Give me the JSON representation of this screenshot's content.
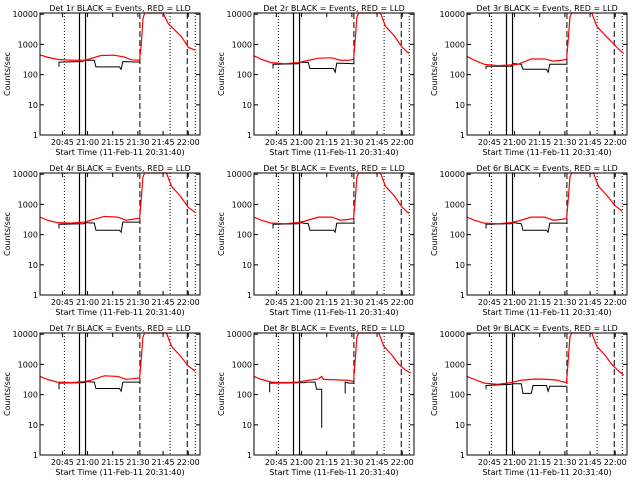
{
  "chart_data": {
    "type": "line",
    "layout": "3x3 grid",
    "ylabel": "Counts/sec",
    "xlabel": "Start Time (11-Feb-11 20:31:40)",
    "yscale": "log",
    "ylim": [
      1,
      11000
    ],
    "xlim_minutes_after_20h": [
      31.67,
      127
    ],
    "x_ticks": [
      {
        "v": 45,
        "label": "20:45"
      },
      {
        "v": 60,
        "label": "21:00"
      },
      {
        "v": 75,
        "label": "21:15"
      },
      {
        "v": 90,
        "label": "21:30"
      },
      {
        "v": 105,
        "label": "21:45"
      },
      {
        "v": 120,
        "label": "22:00"
      }
    ],
    "y_ticks": [
      {
        "v": 1,
        "label": "1"
      },
      {
        "v": 10,
        "label": "10"
      },
      {
        "v": 100,
        "label": "100"
      },
      {
        "v": 1000,
        "label": "1000"
      },
      {
        "v": 10000,
        "label": "10000"
      }
    ],
    "vlines": [
      {
        "t": 46.2,
        "style": "dotted"
      },
      {
        "t": 55.2,
        "style": "solid"
      },
      {
        "t": 58.8,
        "style": "solid"
      },
      {
        "t": 91.2,
        "style": "dashed"
      },
      {
        "t": 109.2,
        "style": "dotted"
      },
      {
        "t": 119.4,
        "style": "dashed"
      },
      {
        "t": 124.2,
        "style": "dotted"
      }
    ],
    "series_colors": {
      "events": "#000000",
      "lld": "#ff0000"
    },
    "panels": [
      {
        "title": "Det 1r BLACK = Events, RED = LLD",
        "red": [
          [
            31.7,
            450
          ],
          [
            36,
            380
          ],
          [
            42,
            320
          ],
          [
            50,
            300
          ],
          [
            58,
            300
          ],
          [
            62,
            340
          ],
          [
            68,
            430
          ],
          [
            76,
            440
          ],
          [
            82,
            380
          ],
          [
            86,
            310
          ],
          [
            91,
            300
          ],
          [
            92,
            1000
          ],
          [
            93,
            7000
          ],
          [
            94,
            12000
          ],
          [
            105,
            12000
          ],
          [
            108,
            5000
          ],
          [
            112,
            3000
          ],
          [
            116,
            1800
          ],
          [
            120,
            800
          ],
          [
            124,
            650
          ]
        ],
        "black": [
          [
            [
              43,
              180
            ],
            [
              43,
              260
            ],
            [
              57,
              270
            ],
            [
              58,
              300
            ],
            [
              64,
              300
            ],
            [
              65,
              180
            ],
            [
              79,
              180
            ],
            [
              80,
              150
            ],
            [
              81,
              270
            ],
            [
              91.5,
              260
            ]
          ]
        ]
      },
      {
        "title": "Det 2r BLACK = Events, RED = LLD",
        "red": [
          [
            31.7,
            420
          ],
          [
            36,
            320
          ],
          [
            42,
            250
          ],
          [
            50,
            230
          ],
          [
            58,
            250
          ],
          [
            62,
            280
          ],
          [
            70,
            350
          ],
          [
            78,
            360
          ],
          [
            83,
            300
          ],
          [
            88,
            300
          ],
          [
            91,
            320
          ],
          [
            92,
            1500
          ],
          [
            93,
            8000
          ],
          [
            94,
            12000
          ],
          [
            107,
            12000
          ],
          [
            110,
            4000
          ],
          [
            115,
            2000
          ],
          [
            120,
            800
          ],
          [
            124,
            500
          ]
        ],
        "black": [
          [
            [
              43,
              160
            ],
            [
              43,
              220
            ],
            [
              58,
              230
            ],
            [
              59,
              260
            ],
            [
              64,
              250
            ],
            [
              65,
              160
            ],
            [
              79,
              160
            ],
            [
              80,
              120
            ],
            [
              81,
              240
            ],
            [
              91.5,
              230
            ]
          ]
        ]
      },
      {
        "title": "Det 3r BLACK = Events, RED = LLD",
        "red": [
          [
            31.7,
            400
          ],
          [
            36,
            300
          ],
          [
            42,
            220
          ],
          [
            50,
            200
          ],
          [
            58,
            210
          ],
          [
            62,
            220
          ],
          [
            70,
            330
          ],
          [
            78,
            330
          ],
          [
            83,
            280
          ],
          [
            88,
            300
          ],
          [
            91,
            320
          ],
          [
            92,
            1500
          ],
          [
            93,
            8000
          ],
          [
            94,
            12000
          ],
          [
            106,
            12000
          ],
          [
            109,
            4000
          ],
          [
            114,
            2000
          ],
          [
            118,
            1200
          ],
          [
            122,
            700
          ],
          [
            125,
            500
          ]
        ],
        "black": [
          [
            [
              43,
              150
            ],
            [
              43,
              190
            ],
            [
              58,
              190
            ],
            [
              59,
              230
            ],
            [
              64,
              220
            ],
            [
              65,
              150
            ],
            [
              79,
              150
            ],
            [
              80,
              120
            ],
            [
              81,
              220
            ],
            [
              91.5,
              220
            ]
          ]
        ]
      },
      {
        "title": "Det 4r BLACK = Events, RED = LLD",
        "red": [
          [
            31.7,
            380
          ],
          [
            36,
            300
          ],
          [
            42,
            250
          ],
          [
            50,
            240
          ],
          [
            58,
            260
          ],
          [
            62,
            300
          ],
          [
            70,
            400
          ],
          [
            78,
            380
          ],
          [
            83,
            300
          ],
          [
            88,
            330
          ],
          [
            91,
            350
          ],
          [
            92,
            1500
          ],
          [
            93,
            8000
          ],
          [
            94,
            12000
          ],
          [
            107,
            12000
          ],
          [
            110,
            4000
          ],
          [
            115,
            2000
          ],
          [
            120,
            800
          ],
          [
            124,
            550
          ]
        ],
        "black": [
          [
            [
              43,
              160
            ],
            [
              43,
              220
            ],
            [
              58,
              230
            ],
            [
              59,
              250
            ],
            [
              64,
              240
            ],
            [
              65,
              140
            ],
            [
              79,
              140
            ],
            [
              80,
              120
            ],
            [
              81,
              260
            ],
            [
              91.5,
              260
            ]
          ]
        ]
      },
      {
        "title": "Det 5r BLACK = Events, RED = LLD",
        "red": [
          [
            31.7,
            380
          ],
          [
            36,
            300
          ],
          [
            42,
            240
          ],
          [
            50,
            230
          ],
          [
            58,
            250
          ],
          [
            62,
            280
          ],
          [
            70,
            380
          ],
          [
            78,
            380
          ],
          [
            83,
            300
          ],
          [
            88,
            320
          ],
          [
            91,
            340
          ],
          [
            92,
            1500
          ],
          [
            93,
            8000
          ],
          [
            94,
            12000
          ],
          [
            107,
            12000
          ],
          [
            110,
            4000
          ],
          [
            115,
            2000
          ],
          [
            120,
            800
          ],
          [
            124,
            500
          ]
        ],
        "black": [
          [
            [
              43,
              160
            ],
            [
              43,
              220
            ],
            [
              58,
              230
            ],
            [
              59,
              250
            ],
            [
              64,
              230
            ],
            [
              65,
              140
            ],
            [
              79,
              140
            ],
            [
              80,
              120
            ],
            [
              81,
              240
            ],
            [
              91.5,
              240
            ]
          ]
        ]
      },
      {
        "title": "Det 6r BLACK = Events, RED = LLD",
        "red": [
          [
            31.7,
            380
          ],
          [
            36,
            300
          ],
          [
            42,
            240
          ],
          [
            50,
            230
          ],
          [
            58,
            250
          ],
          [
            62,
            280
          ],
          [
            70,
            380
          ],
          [
            78,
            380
          ],
          [
            83,
            300
          ],
          [
            88,
            320
          ],
          [
            91,
            340
          ],
          [
            92,
            1500
          ],
          [
            93,
            8000
          ],
          [
            94,
            12000
          ],
          [
            107,
            12000
          ],
          [
            110,
            4000
          ],
          [
            115,
            2000
          ],
          [
            120,
            900
          ],
          [
            124,
            600
          ]
        ],
        "black": [
          [
            [
              43,
              160
            ],
            [
              43,
              220
            ],
            [
              58,
              230
            ],
            [
              59,
              250
            ],
            [
              64,
              230
            ],
            [
              65,
              140
            ],
            [
              79,
              140
            ],
            [
              80,
              120
            ],
            [
              81,
              240
            ],
            [
              91.5,
              240
            ]
          ]
        ]
      },
      {
        "title": "Det 7r BLACK = Events, RED = LLD",
        "red": [
          [
            31.7,
            400
          ],
          [
            36,
            320
          ],
          [
            42,
            260
          ],
          [
            50,
            250
          ],
          [
            58,
            270
          ],
          [
            62,
            300
          ],
          [
            70,
            420
          ],
          [
            78,
            400
          ],
          [
            83,
            320
          ],
          [
            88,
            340
          ],
          [
            91,
            360
          ],
          [
            92,
            1500
          ],
          [
            93,
            8000
          ],
          [
            94,
            12000
          ],
          [
            107,
            12000
          ],
          [
            110,
            4000
          ],
          [
            115,
            2000
          ],
          [
            120,
            900
          ],
          [
            124,
            600
          ]
        ],
        "black": [
          [
            [
              43,
              150
            ],
            [
              43,
              240
            ],
            [
              58,
              250
            ],
            [
              59,
              270
            ],
            [
              64,
              260
            ],
            [
              65,
              160
            ],
            [
              79,
              160
            ],
            [
              80,
              130
            ],
            [
              81,
              260
            ],
            [
              91.5,
              260
            ]
          ]
        ]
      },
      {
        "title": "Det 8r BLACK = Events, RED = LLD",
        "red": [
          [
            31.7,
            400
          ],
          [
            36,
            320
          ],
          [
            42,
            260
          ],
          [
            50,
            250
          ],
          [
            58,
            260
          ],
          [
            64,
            300
          ],
          [
            70,
            330
          ],
          [
            72,
            400
          ],
          [
            73,
            320
          ],
          [
            88,
            300
          ],
          [
            91,
            270
          ],
          [
            92,
            1500
          ],
          [
            93,
            8000
          ],
          [
            94,
            12000
          ],
          [
            106,
            12000
          ],
          [
            109,
            4000
          ],
          [
            114,
            2000
          ],
          [
            118,
            1000
          ],
          [
            122,
            650
          ],
          [
            125,
            520
          ]
        ],
        "black": [
          [
            [
              41,
              120
            ],
            [
              41,
              240
            ],
            [
              62,
              250
            ],
            [
              63,
              260
            ],
            [
              68,
              260
            ],
            [
              69,
              150
            ],
            [
              72,
              150
            ],
            [
              72,
              8
            ]
          ],
          [
            [
              86,
              110
            ],
            [
              86,
              260
            ],
            [
              88,
              240
            ],
            [
              91.5,
              240
            ]
          ]
        ]
      },
      {
        "title": "Det 9r BLACK = Events, RED = LLD",
        "red": [
          [
            31.7,
            400
          ],
          [
            36,
            320
          ],
          [
            42,
            240
          ],
          [
            50,
            220
          ],
          [
            58,
            250
          ],
          [
            64,
            300
          ],
          [
            72,
            330
          ],
          [
            80,
            320
          ],
          [
            86,
            300
          ],
          [
            88,
            270
          ],
          [
            91,
            250
          ],
          [
            92,
            1500
          ],
          [
            93,
            8000
          ],
          [
            94,
            12000
          ],
          [
            106,
            12000
          ],
          [
            109,
            4000
          ],
          [
            114,
            2000
          ],
          [
            118,
            1000
          ],
          [
            122,
            600
          ],
          [
            125,
            450
          ]
        ],
        "black": [
          [
            [
              43,
              150
            ],
            [
              43,
              200
            ],
            [
              58,
              220
            ],
            [
              59,
              230
            ],
            [
              64,
              230
            ],
            [
              65,
              110
            ],
            [
              70,
              110
            ],
            [
              71,
              200
            ],
            [
              79,
              200
            ],
            [
              80,
              130
            ],
            [
              81,
              190
            ],
            [
              91.5,
              190
            ]
          ]
        ]
      }
    ]
  }
}
